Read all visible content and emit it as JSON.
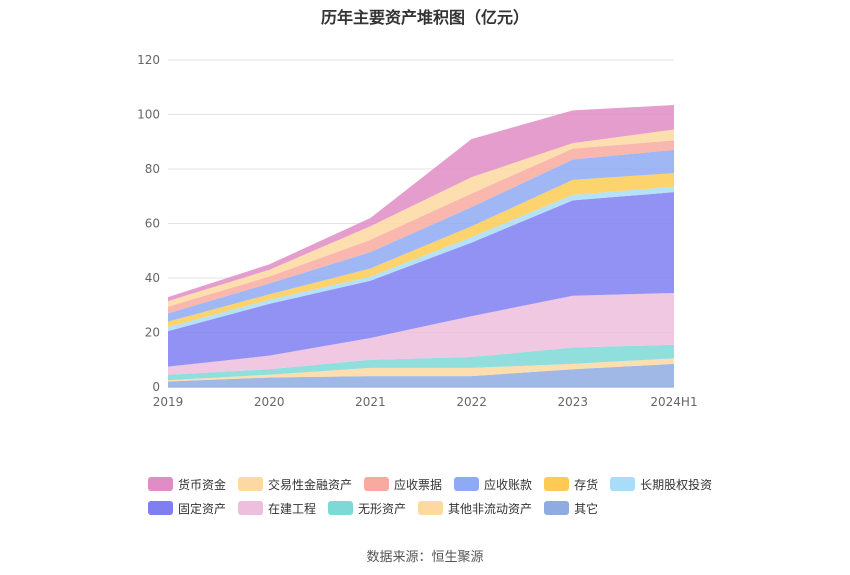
{
  "chart_data": {
    "type": "area",
    "stacked": true,
    "title": "历年主要资产堆积图（亿元）",
    "categories": [
      "2019",
      "2020",
      "2021",
      "2022",
      "2023",
      "2024H1"
    ],
    "ylim": [
      0,
      120
    ],
    "yticks": [
      0,
      20,
      40,
      60,
      80,
      100,
      120
    ],
    "grid": true,
    "legend_position": "bottom",
    "series_stack_order": [
      "其它",
      "其他非流动资产",
      "无形资产",
      "在建工程",
      "固定资产",
      "长期股权投资",
      "存货",
      "应收账款",
      "应收票据",
      "交易性金融资产",
      "货币资金"
    ],
    "series": [
      {
        "name": "货币资金",
        "color": "#e08cc5",
        "values": [
          1.5,
          2,
          3,
          14,
          12,
          9
        ]
      },
      {
        "name": "交易性金融资产",
        "color": "#fdd8a0",
        "values": [
          2,
          2.5,
          5,
          6,
          2,
          4
        ]
      },
      {
        "name": "应收票据",
        "color": "#f8aaa0",
        "values": [
          2.5,
          2.5,
          4.5,
          5,
          4,
          3.5
        ]
      },
      {
        "name": "应收账款",
        "color": "#8faaf5",
        "values": [
          3,
          4,
          6,
          7,
          7.5,
          8.5
        ]
      },
      {
        "name": "存货",
        "color": "#fdcb53",
        "values": [
          2,
          2,
          3,
          4,
          5.5,
          5
        ]
      },
      {
        "name": "长期股权投资",
        "color": "#a8dcf8",
        "values": [
          1.5,
          1.5,
          1.5,
          2,
          2,
          2
        ]
      },
      {
        "name": "固定资产",
        "color": "#7f7ff2",
        "values": [
          13,
          19,
          21,
          27,
          35,
          37
        ]
      },
      {
        "name": "在建工程",
        "color": "#edbedd",
        "values": [
          3,
          5,
          8,
          15,
          19,
          19
        ]
      },
      {
        "name": "无形资产",
        "color": "#7dd9d6",
        "values": [
          2,
          2,
          3,
          4,
          6,
          5
        ]
      },
      {
        "name": "其他非流动资产",
        "color": "#fdd8a0",
        "values": [
          0.5,
          1,
          3,
          3,
          2,
          2
        ]
      },
      {
        "name": "其它",
        "color": "#8fabe0",
        "values": [
          2,
          3.5,
          4,
          4,
          6.5,
          8.5
        ]
      }
    ],
    "legend_rows": [
      [
        "货币资金",
        "交易性金融资产",
        "应收票据",
        "应收账款",
        "存货",
        "长期股权投资"
      ],
      [
        "固定资产",
        "在建工程",
        "无形资产",
        "其他非流动资产",
        "其它"
      ]
    ]
  },
  "source": "数据来源：恒生聚源"
}
